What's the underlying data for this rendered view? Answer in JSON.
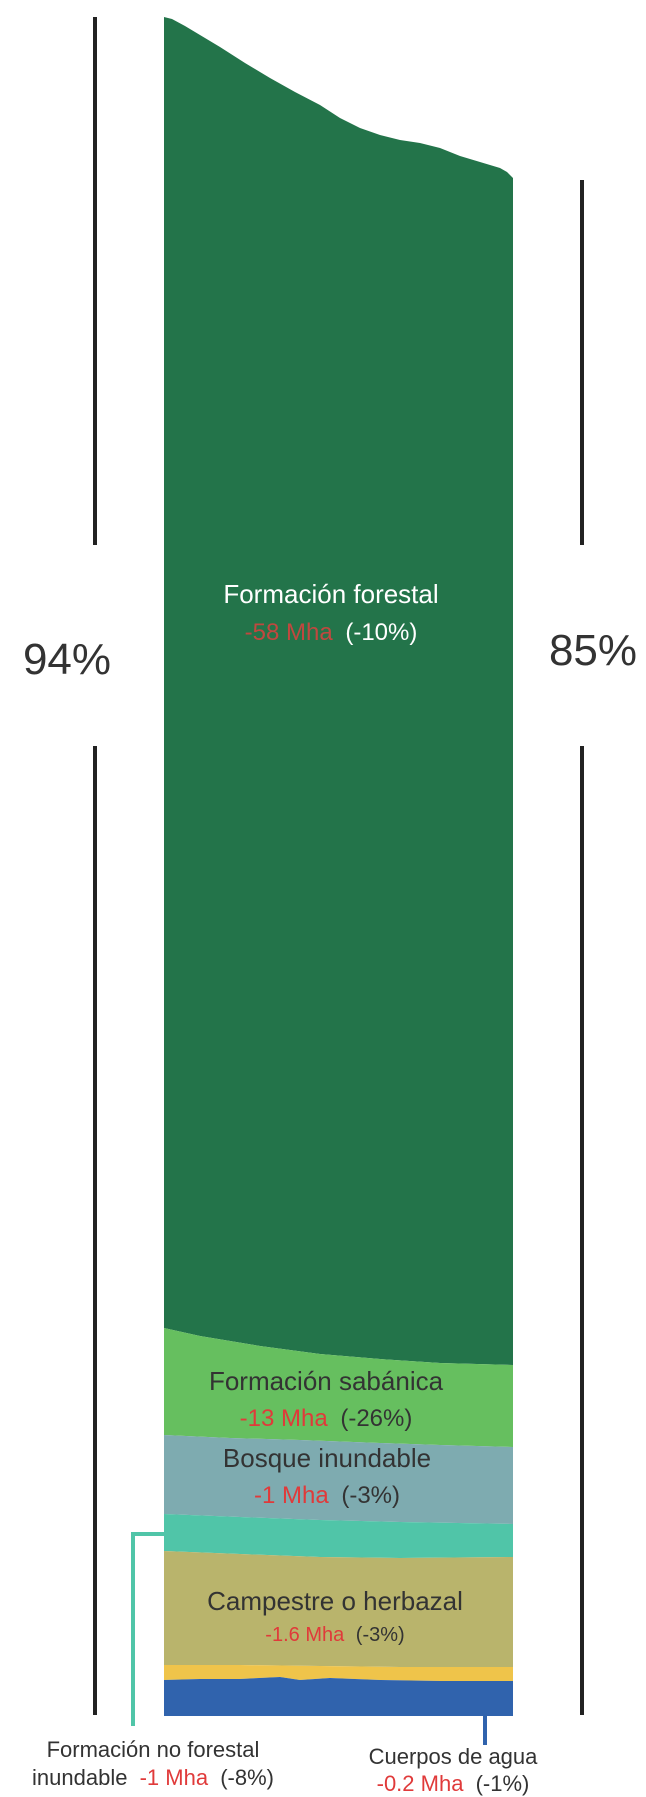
{
  "chart_data": {
    "type": "area",
    "stacked": true,
    "colors": {
      "forest": "#23744a",
      "savanna": "#66bf5f",
      "flooded_forest": "#7eabb0",
      "non_forest_flooded": "#50c5a8",
      "grassland": "#b9b46c",
      "other": "#efc44a",
      "water": "#3063ad",
      "loss": "#e03a3a",
      "label_light": "#ffffff",
      "label_dark": "#333333",
      "bracket": "#222222"
    },
    "bracket_labels": {
      "left": "94%",
      "right": "85%"
    },
    "series": [
      {
        "key": "forest",
        "name": "Formación forestal",
        "change": "-58 Mha",
        "pct": "(-10%)"
      },
      {
        "key": "savanna",
        "name": "Formación sabánica",
        "change": "-13 Mha",
        "pct": "(-26%)"
      },
      {
        "key": "flooded_forest",
        "name": "Bosque inundable",
        "change": "-1 Mha",
        "pct": "(-3%)"
      },
      {
        "key": "non_forest_flooded",
        "name_line1": "Formación no forestal",
        "name_line2": "inundable",
        "change": "-1 Mha",
        "pct": "(-8%)"
      },
      {
        "key": "grassland",
        "name": "Campestre o herbazal",
        "change": "-1.6 Mha",
        "pct": "(-3%)"
      },
      {
        "key": "other"
      },
      {
        "key": "water",
        "name": "Cuerpos de agua",
        "change": "-0.2 Mha",
        "pct": "(-1%)"
      }
    ]
  }
}
